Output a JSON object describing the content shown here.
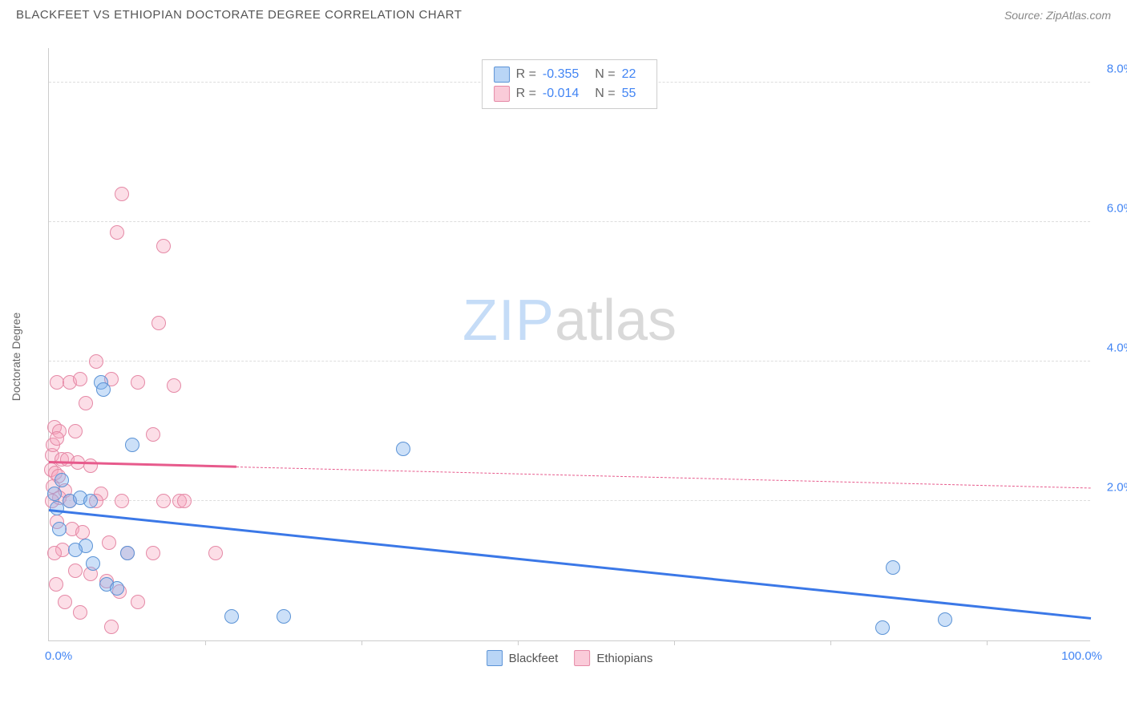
{
  "header": {
    "title": "BLACKFEET VS ETHIOPIAN DOCTORATE DEGREE CORRELATION CHART",
    "source": "Source: ZipAtlas.com"
  },
  "chart": {
    "type": "scatter",
    "ylabel": "Doctorate Degree",
    "background_color": "#ffffff",
    "grid_color": "#dddddd",
    "axis_color": "#cccccc",
    "xlim": [
      0,
      100
    ],
    "ylim": [
      0,
      8.5
    ],
    "yticks": [
      {
        "value": 2.0,
        "label": "2.0%"
      },
      {
        "value": 4.0,
        "label": "4.0%"
      },
      {
        "value": 6.0,
        "label": "6.0%"
      },
      {
        "value": 8.0,
        "label": "8.0%"
      }
    ],
    "xticks_minor": [
      15,
      30,
      45,
      60,
      75,
      90
    ],
    "xtick_labels": [
      {
        "value": 0,
        "label": "0.0%"
      },
      {
        "value": 100,
        "label": "100.0%"
      }
    ],
    "watermark": {
      "part1": "ZIP",
      "part2": "atlas"
    },
    "marker_size": 18,
    "series": [
      {
        "name": "Blackfeet",
        "color_fill": "rgba(127, 178, 238, 0.4)",
        "color_stroke": "#5b93d6",
        "class": "point-blue",
        "R": "-0.355",
        "N": "22",
        "trend": {
          "x1": 0,
          "y1": 1.85,
          "x2": 100,
          "y2": 0.3,
          "solid_until_x": 100,
          "color": "#3b78e7"
        },
        "points": [
          {
            "x": 0.5,
            "y": 2.1
          },
          {
            "x": 0.8,
            "y": 1.9
          },
          {
            "x": 1.0,
            "y": 1.6
          },
          {
            "x": 5.0,
            "y": 3.7
          },
          {
            "x": 5.2,
            "y": 3.6
          },
          {
            "x": 8.0,
            "y": 2.8
          },
          {
            "x": 2.0,
            "y": 2.0
          },
          {
            "x": 3.0,
            "y": 2.05
          },
          {
            "x": 4.0,
            "y": 2.0
          },
          {
            "x": 3.5,
            "y": 1.35
          },
          {
            "x": 4.2,
            "y": 1.1
          },
          {
            "x": 5.5,
            "y": 0.8
          },
          {
            "x": 6.5,
            "y": 0.75
          },
          {
            "x": 7.5,
            "y": 1.25
          },
          {
            "x": 17.5,
            "y": 0.35
          },
          {
            "x": 22.5,
            "y": 0.35
          },
          {
            "x": 34.0,
            "y": 2.75
          },
          {
            "x": 81.0,
            "y": 1.05
          },
          {
            "x": 80.0,
            "y": 0.18
          },
          {
            "x": 86.0,
            "y": 0.3
          },
          {
            "x": 2.5,
            "y": 1.3
          },
          {
            "x": 1.2,
            "y": 2.3
          }
        ]
      },
      {
        "name": "Ethiopians",
        "color_fill": "rgba(245, 160, 185, 0.35)",
        "color_stroke": "#e589a6",
        "class": "point-pink",
        "R": "-0.014",
        "N": "55",
        "trend": {
          "x1": 0,
          "y1": 2.55,
          "x2": 100,
          "y2": 2.18,
          "solid_until_x": 18,
          "color": "#e75a8c"
        },
        "points": [
          {
            "x": 7.0,
            "y": 6.4
          },
          {
            "x": 6.5,
            "y": 5.85
          },
          {
            "x": 11.0,
            "y": 5.65
          },
          {
            "x": 10.5,
            "y": 4.55
          },
          {
            "x": 4.5,
            "y": 4.0
          },
          {
            "x": 0.8,
            "y": 3.7
          },
          {
            "x": 2.0,
            "y": 3.7
          },
          {
            "x": 3.0,
            "y": 3.75
          },
          {
            "x": 6.0,
            "y": 3.75
          },
          {
            "x": 8.5,
            "y": 3.7
          },
          {
            "x": 12.0,
            "y": 3.65
          },
          {
            "x": 3.5,
            "y": 3.4
          },
          {
            "x": 0.5,
            "y": 3.05
          },
          {
            "x": 1.0,
            "y": 3.0
          },
          {
            "x": 2.5,
            "y": 3.0
          },
          {
            "x": 10.0,
            "y": 2.95
          },
          {
            "x": 0.3,
            "y": 2.65
          },
          {
            "x": 1.2,
            "y": 2.6
          },
          {
            "x": 1.8,
            "y": 2.6
          },
          {
            "x": 2.8,
            "y": 2.55
          },
          {
            "x": 4.0,
            "y": 2.5
          },
          {
            "x": 0.2,
            "y": 2.45
          },
          {
            "x": 0.6,
            "y": 2.4
          },
          {
            "x": 0.9,
            "y": 2.35
          },
          {
            "x": 0.4,
            "y": 2.2
          },
          {
            "x": 1.5,
            "y": 2.15
          },
          {
            "x": 5.0,
            "y": 2.1
          },
          {
            "x": 1.0,
            "y": 2.05
          },
          {
            "x": 2.0,
            "y": 2.0
          },
          {
            "x": 4.5,
            "y": 2.0
          },
          {
            "x": 7.0,
            "y": 2.0
          },
          {
            "x": 11.0,
            "y": 2.0
          },
          {
            "x": 12.5,
            "y": 2.0
          },
          {
            "x": 0.8,
            "y": 1.7
          },
          {
            "x": 2.2,
            "y": 1.6
          },
          {
            "x": 3.2,
            "y": 1.55
          },
          {
            "x": 5.8,
            "y": 1.4
          },
          {
            "x": 1.3,
            "y": 1.3
          },
          {
            "x": 0.5,
            "y": 1.25
          },
          {
            "x": 7.5,
            "y": 1.25
          },
          {
            "x": 10.0,
            "y": 1.25
          },
          {
            "x": 16.0,
            "y": 1.25
          },
          {
            "x": 2.5,
            "y": 1.0
          },
          {
            "x": 4.0,
            "y": 0.95
          },
          {
            "x": 5.5,
            "y": 0.85
          },
          {
            "x": 0.7,
            "y": 0.8
          },
          {
            "x": 6.8,
            "y": 0.7
          },
          {
            "x": 8.5,
            "y": 0.55
          },
          {
            "x": 3.0,
            "y": 0.4
          },
          {
            "x": 6.0,
            "y": 0.2
          },
          {
            "x": 1.5,
            "y": 0.55
          },
          {
            "x": 0.3,
            "y": 2.0
          },
          {
            "x": 0.4,
            "y": 2.8
          },
          {
            "x": 0.8,
            "y": 2.9
          },
          {
            "x": 13.0,
            "y": 2.0
          }
        ]
      }
    ],
    "legend_bottom": [
      {
        "label": "Blackfeet",
        "class": "sw-blue"
      },
      {
        "label": "Ethiopians",
        "class": "sw-pink"
      }
    ],
    "legend_top": {
      "r_label": "R =",
      "n_label": "N ="
    }
  }
}
